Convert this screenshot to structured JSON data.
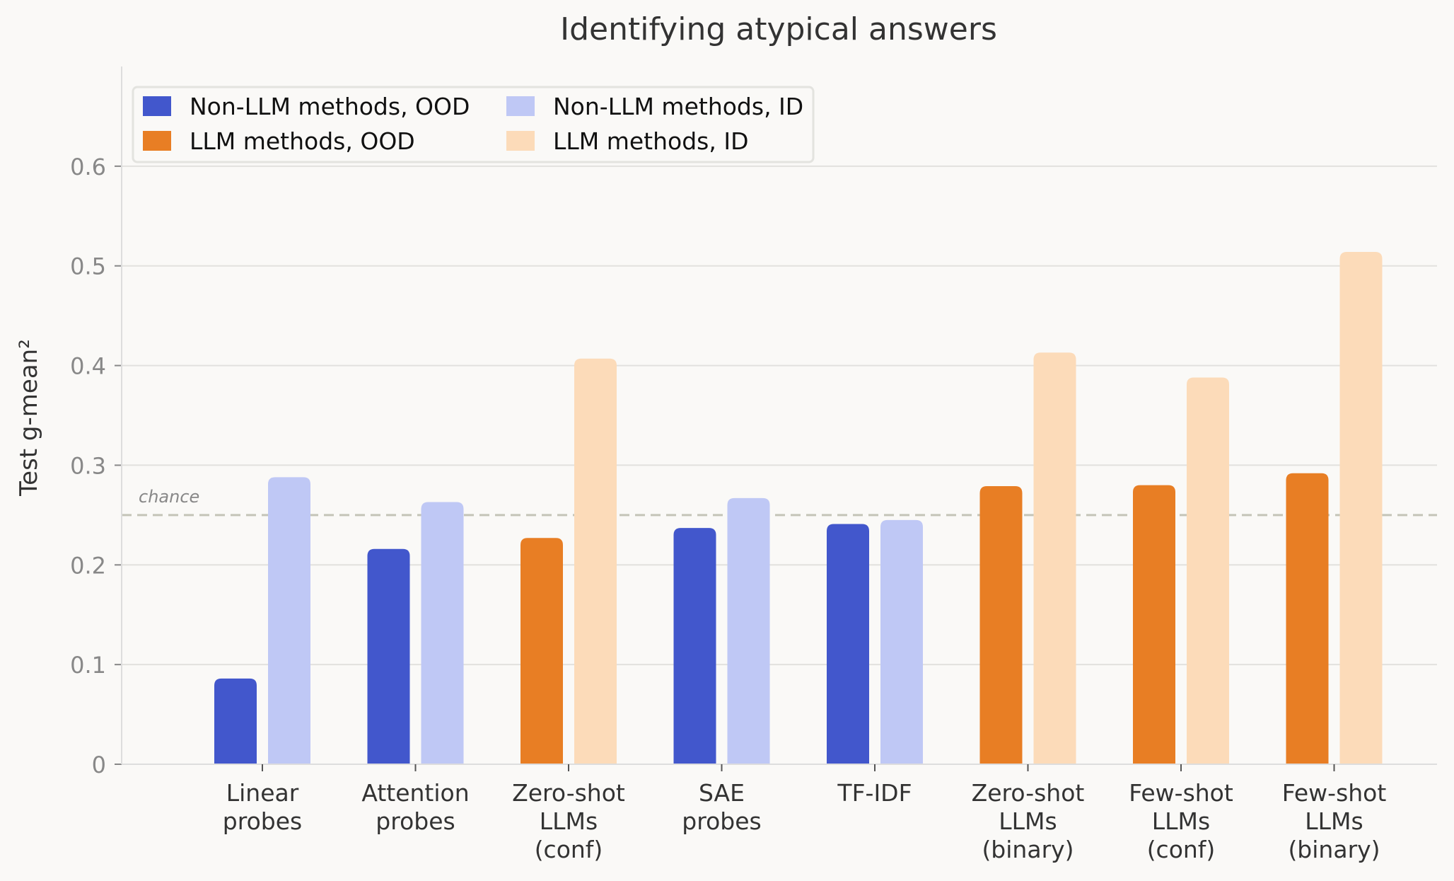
{
  "chart_data": {
    "type": "bar",
    "title": "Identifying atypical answers",
    "xlabel": "",
    "ylabel": "Test g-mean²",
    "ylim": [
      0,
      0.7
    ],
    "yticks": [
      0,
      0.1,
      0.2,
      0.3,
      0.4,
      0.5,
      0.6
    ],
    "ytick_labels": [
      "0",
      "0.1",
      "0.2",
      "0.3",
      "0.4",
      "0.5",
      "0.6"
    ],
    "grid": true,
    "categories": [
      [
        "Linear",
        "probes"
      ],
      [
        "Attention",
        "probes"
      ],
      [
        "Zero-shot",
        "LLMs",
        "(conf)"
      ],
      [
        "SAE",
        "probes"
      ],
      [
        "TF-IDF"
      ],
      [
        "Zero-shot",
        "LLMs",
        "(binary)"
      ],
      [
        "Few-shot",
        "LLMs",
        "(conf)"
      ],
      [
        "Few-shot",
        "LLMs",
        "(binary)"
      ]
    ],
    "method_type": [
      "non-llm",
      "non-llm",
      "llm",
      "non-llm",
      "non-llm",
      "llm",
      "llm",
      "llm"
    ],
    "series": [
      {
        "name": "OOD",
        "values": [
          0.086,
          0.216,
          0.227,
          0.237,
          0.241,
          0.279,
          0.28,
          0.292
        ]
      },
      {
        "name": "ID",
        "values": [
          0.288,
          0.263,
          0.407,
          0.267,
          0.245,
          0.413,
          0.388,
          0.514
        ]
      }
    ],
    "reference_line": {
      "label": "chance",
      "value": 0.25
    },
    "legend": {
      "placement": "top-left",
      "entries": [
        {
          "label": "Non-LLM methods, OOD",
          "color": "#4257cc"
        },
        {
          "label": "Non-LLM methods, ID",
          "color": "#bfc8f5"
        },
        {
          "label": "LLM methods, OOD",
          "color": "#e87e24"
        },
        {
          "label": "LLM methods, ID",
          "color": "#fcdbb9"
        }
      ]
    },
    "colors": {
      "non-llm": {
        "OOD": "#4257cc",
        "ID": "#bfc8f5"
      },
      "llm": {
        "OOD": "#e87e24",
        "ID": "#fcdbb9"
      }
    }
  }
}
